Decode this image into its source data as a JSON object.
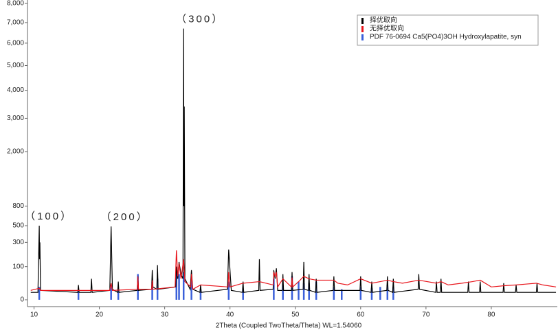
{
  "chart_data": {
    "type": "line",
    "yscale": "sqrt",
    "x_label": "2Theta (Coupled TwoTheta/Theta) WL=1.54060",
    "xlim": [
      9,
      90
    ],
    "xticks": [
      10,
      20,
      30,
      40,
      50,
      60,
      70,
      80
    ],
    "ylim": [
      0,
      8000
    ],
    "yticks": [
      0,
      100,
      300,
      500,
      800,
      {
        "value": 2000,
        "label": "2,000"
      },
      {
        "value": 3000,
        "label": "3,000"
      },
      {
        "value": 4000,
        "label": "4,000"
      },
      {
        "value": 5000,
        "label": "5,000"
      },
      {
        "value": 6000,
        "label": "6,000"
      },
      {
        "value": 7000,
        "label": "7,000"
      },
      {
        "value": 8000,
        "label": "8,000"
      }
    ],
    "annotations": [
      {
        "text": "（100）",
        "x": 10.8,
        "y": 500
      },
      {
        "text": "（200）",
        "x": 21.8,
        "y": 490
      },
      {
        "text": "（300）",
        "x": 32.9,
        "y": 6700
      }
    ],
    "series": [
      {
        "name": "择优取向",
        "color": "#000000",
        "x": [
          9.5,
          10.6,
          10.8,
          10.85,
          10.9,
          11.0,
          16.7,
          16.8,
          16.9,
          18.7,
          18.8,
          18.9,
          21.6,
          21.8,
          22.0,
          22.8,
          22.9,
          23.0,
          25.8,
          25.9,
          26.0,
          28.0,
          28.1,
          28.2,
          28.8,
          28.9,
          29.0,
          31.7,
          31.8,
          32.0,
          32.2,
          32.5,
          32.8,
          32.9,
          32.95,
          33.0,
          33.1,
          33.9,
          34.1,
          34.3,
          35.4,
          35.5,
          35.6,
          39.6,
          39.8,
          40.0,
          40.2,
          41.9,
          42.0,
          42.1,
          44.4,
          44.5,
          44.6,
          46.6,
          46.7,
          46.9,
          47.1,
          47.3,
          48.0,
          48.1,
          48.2,
          49.4,
          49.5,
          49.6,
          51.2,
          51.3,
          51.4,
          52.0,
          52.1,
          52.2,
          53.1,
          53.2,
          53.3,
          55.8,
          55.9,
          56.0,
          59.9,
          60.0,
          60.1,
          61.6,
          61.7,
          61.8,
          64.0,
          64.1,
          64.2,
          64.9,
          65.0,
          65.1,
          68.8,
          68.9,
          69.0,
          71.5,
          71.6,
          71.7,
          72.2,
          72.3,
          72.4,
          76.4,
          76.5,
          76.6,
          78.2,
          78.3,
          78.4,
          81.8,
          81.9,
          82.0,
          83.7,
          83.8,
          83.9,
          86.9,
          87.0,
          87.1,
          89.9
        ],
        "values": [
          5,
          5,
          500,
          150,
          300,
          8,
          5,
          20,
          5,
          5,
          40,
          5,
          8,
          490,
          10,
          5,
          30,
          5,
          8,
          50,
          8,
          10,
          80,
          15,
          10,
          110,
          10,
          15,
          100,
          40,
          130,
          60,
          40,
          6700,
          800,
          3400,
          40,
          10,
          80,
          10,
          5,
          20,
          5,
          10,
          230,
          80,
          8,
          5,
          30,
          5,
          8,
          150,
          8,
          10,
          80,
          40,
          90,
          8,
          8,
          60,
          8,
          8,
          70,
          8,
          10,
          130,
          10,
          8,
          60,
          8,
          5,
          40,
          5,
          8,
          50,
          8,
          8,
          50,
          8,
          5,
          30,
          5,
          8,
          50,
          8,
          5,
          40,
          5,
          10,
          60,
          10,
          5,
          30,
          5,
          5,
          40,
          5,
          5,
          30,
          5,
          5,
          30,
          5,
          5,
          25,
          5,
          5,
          20,
          5,
          5,
          25,
          5,
          5
        ]
      },
      {
        "name": "无择优取向",
        "color": "#e8141b",
        "x": [
          9.5,
          10.8,
          11.0,
          21.6,
          21.8,
          22.0,
          25.8,
          25.9,
          26.0,
          28.0,
          28.1,
          28.2,
          31.6,
          31.8,
          32.0,
          32.2,
          32.5,
          32.9,
          33.1,
          34.0,
          34.1,
          34.3,
          35.5,
          39.7,
          39.8,
          40.0,
          42.0,
          44.5,
          46.6,
          46.7,
          46.9,
          47.1,
          47.3,
          48.1,
          49.4,
          49.5,
          49.6,
          50.5,
          51.3,
          52.1,
          53.2,
          55.9,
          56.5,
          58.0,
          60.0,
          61.7,
          63.0,
          64.1,
          65.0,
          66.4,
          68.9,
          71.6,
          72.3,
          73.4,
          75.5,
          77.1,
          78.3,
          80.0,
          82.0,
          83.8,
          86.9,
          87.9,
          89.9
        ],
        "values": [
          8,
          12,
          8,
          8,
          25,
          8,
          10,
          50,
          10,
          10,
          34,
          10,
          15,
          222,
          50,
          120,
          40,
          150,
          30,
          15,
          60,
          10,
          20,
          15,
          70,
          15,
          25,
          30,
          20,
          70,
          50,
          70,
          15,
          40,
          15,
          45,
          15,
          30,
          50,
          40,
          35,
          35,
          25,
          20,
          40,
          25,
          30,
          35,
          30,
          25,
          35,
          25,
          30,
          20,
          25,
          30,
          35,
          15,
          18,
          20,
          25,
          20,
          15
        ]
      },
      {
        "name": "PDF 76-0694 Ca5(PO4)3OH Hydroxylapatite, syn",
        "color": "#3a5fd9",
        "style": "stick",
        "x": [
          10.8,
          16.8,
          21.8,
          22.9,
          25.9,
          28.1,
          28.9,
          31.8,
          32.2,
          32.9,
          34.1,
          35.5,
          39.8,
          42.0,
          46.7,
          48.1,
          49.5,
          50.5,
          51.3,
          52.1,
          53.2,
          55.9,
          57.1,
          60.0,
          61.7,
          63.0,
          64.1,
          65.0
        ],
        "values": [
          15,
          8,
          20,
          10,
          60,
          30,
          40,
          100,
          60,
          70,
          40,
          10,
          30,
          10,
          40,
          20,
          50,
          30,
          25,
          25,
          30,
          15,
          10,
          15,
          12,
          15,
          20,
          15
        ]
      }
    ]
  }
}
